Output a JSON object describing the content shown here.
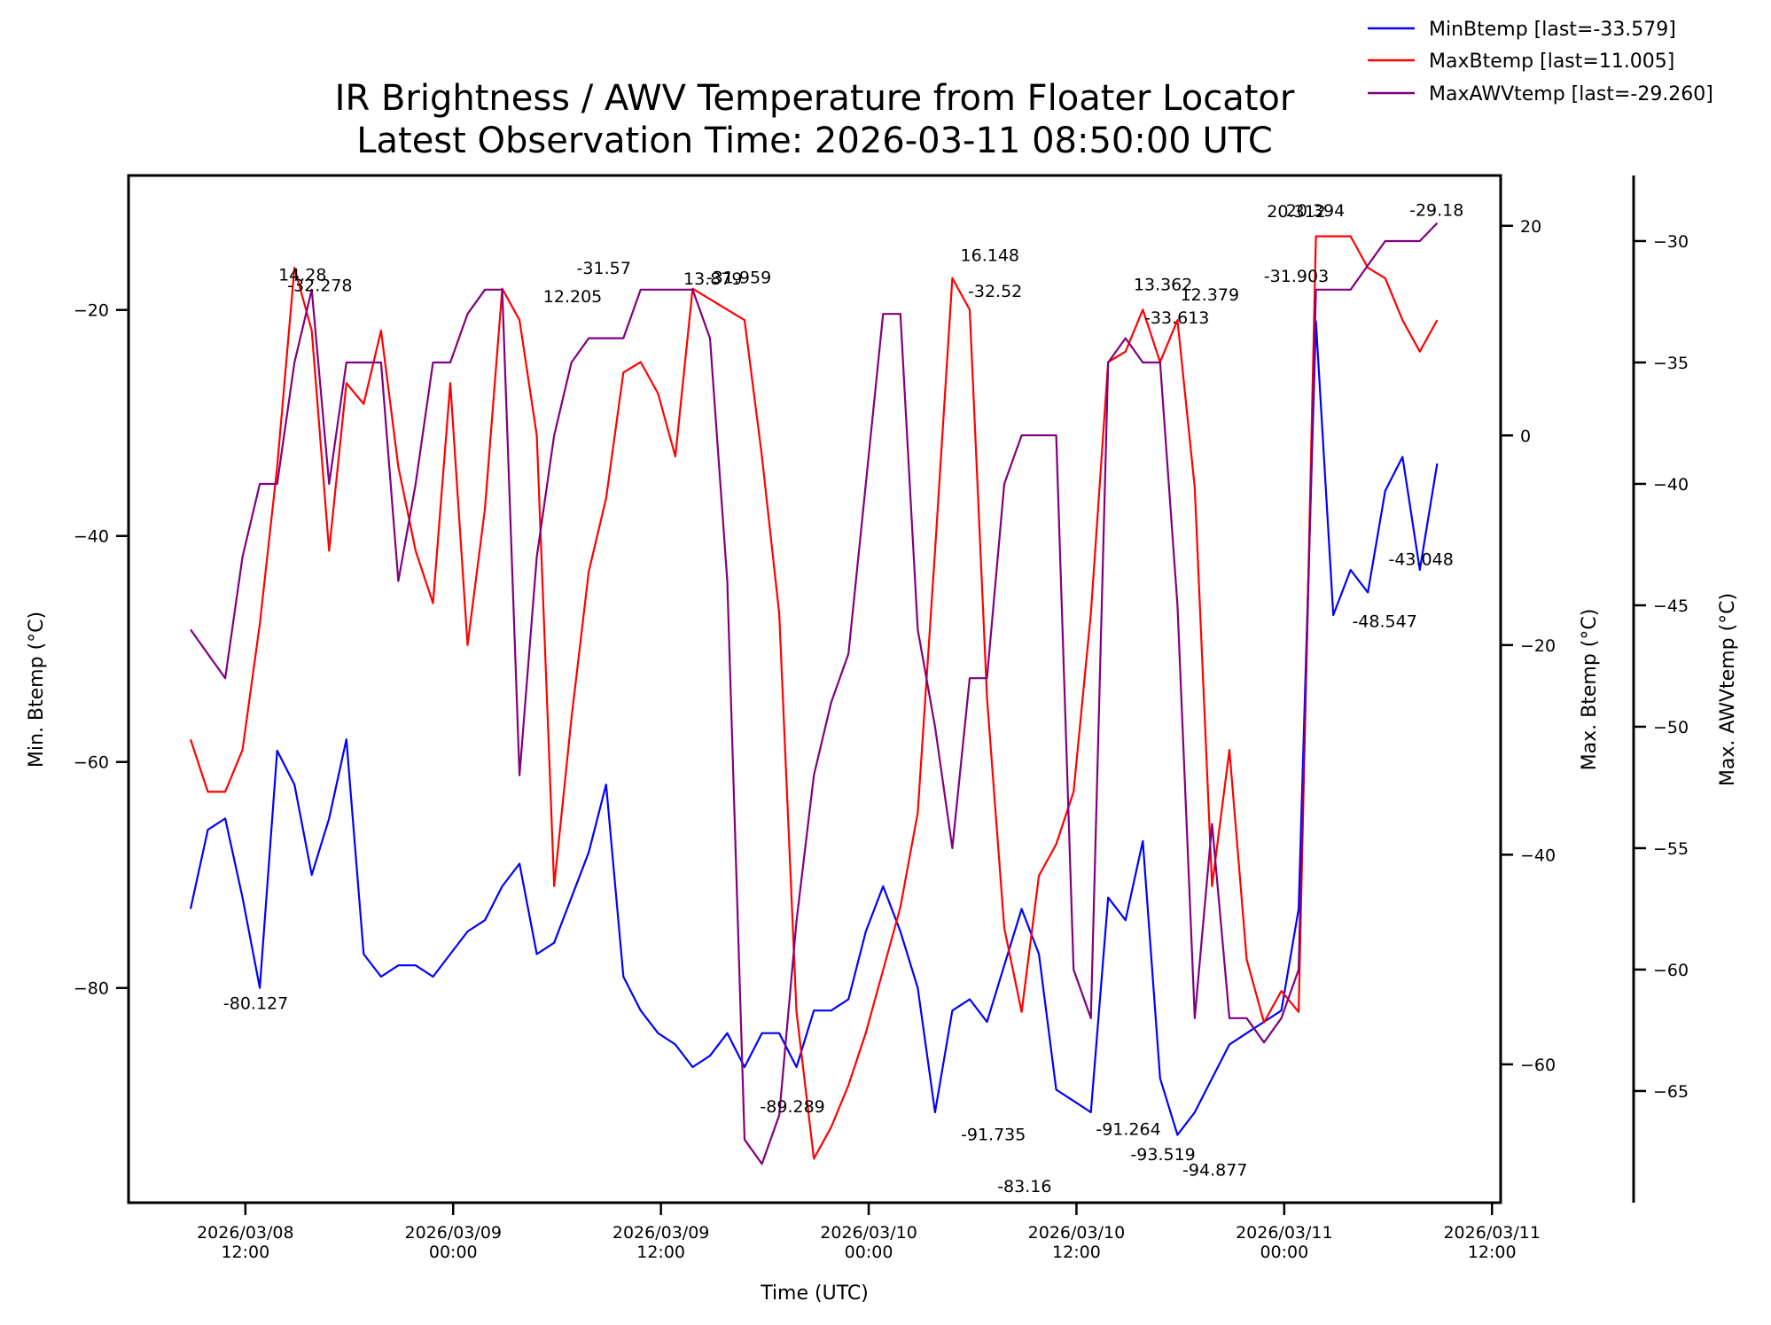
{
  "chart_data": {
    "type": "line",
    "title": [
      "IR Brightness / AWV Temperature from Floater Locator",
      "Latest Observation Time: 2026-03-11 08:50:00 UTC"
    ],
    "xlabel": "Time (UTC)",
    "x_ticks": [
      {
        "hour": 12,
        "line1": "2026/03/08",
        "line2": "12:00"
      },
      {
        "hour": 24,
        "line1": "2026/03/09",
        "line2": "00:00"
      },
      {
        "hour": 36,
        "line1": "2026/03/09",
        "line2": "12:00"
      },
      {
        "hour": 48,
        "line1": "2026/03/10",
        "line2": "00:00"
      },
      {
        "hour": 60,
        "line1": "2026/03/10",
        "line2": "12:00"
      },
      {
        "hour": 72,
        "line1": "2026/03/11",
        "line2": "00:00"
      },
      {
        "hour": 84,
        "line1": "2026/03/11",
        "line2": "12:00"
      }
    ],
    "x_unit": "hours since 2026-03-08 00:00 UTC",
    "xlim": [
      5.25,
      84.5
    ],
    "x_start": 8.833,
    "x_step_hours": 1,
    "axes": [
      {
        "id": "left",
        "label": "Min. Btemp (°C)",
        "ylim": [
          -99,
          -8.1
        ],
        "ticks": [
          -20,
          -40,
          -60,
          -80
        ]
      },
      {
        "id": "right1",
        "label": "Max. Btemp (°C)",
        "ylim": [
          -73.2,
          24.8
        ],
        "ticks": [
          20,
          0,
          -20,
          -40,
          -60
        ]
      },
      {
        "id": "right2",
        "label": "Max. AWVtemp (°C)",
        "ylim": [
          -69.6,
          -27.3
        ],
        "ticks": [
          -30,
          -35,
          -40,
          -45,
          -50,
          -55,
          -60,
          -65
        ]
      }
    ],
    "series": [
      {
        "name": "MinBtemp",
        "legend": "MinBtemp [last=-33.579]",
        "axis": "left",
        "color": "#0000ff",
        "values": [
          -73,
          -66,
          -65,
          -72,
          -80,
          -59,
          -62,
          -70,
          -65,
          -58,
          -77,
          -79,
          -78,
          -78,
          -79,
          -77,
          -75,
          -74,
          -71,
          -69,
          -77,
          -76,
          -72,
          -68,
          -62,
          -79,
          -82,
          -84,
          -85,
          -87,
          -86,
          -84,
          -87,
          -84,
          -84,
          -87,
          -82,
          -82,
          -81,
          -75,
          -71,
          -75,
          -80,
          -91,
          -82,
          -81,
          -83,
          -78,
          -73,
          -77,
          -89,
          -90,
          -91,
          -72,
          -74,
          -67,
          -88,
          -93,
          -91,
          -88,
          -85,
          -84,
          -83,
          -82,
          -73,
          -21,
          -47,
          -43,
          -45,
          -36,
          -33,
          -43,
          -33.579
        ]
      },
      {
        "name": "MaxBtemp",
        "legend": "MaxBtemp [last=11.005]",
        "axis": "right1",
        "color": "#ff0000",
        "values": [
          -29,
          -34,
          -34,
          -30,
          -18,
          -3,
          16,
          10,
          -11,
          5,
          3,
          10,
          -3,
          -11,
          -16,
          5,
          -20,
          -7,
          14,
          11,
          0,
          -43,
          -27,
          -13,
          -6,
          6,
          7,
          4,
          -2,
          14,
          13,
          12,
          11,
          -2,
          -17,
          -55,
          -69,
          -66,
          -62,
          -57,
          -51,
          -45,
          -36,
          -11,
          15,
          12,
          -25,
          -47,
          -55,
          -42,
          -39,
          -34,
          -17,
          7,
          8,
          12,
          7,
          11,
          -5,
          -43,
          -30,
          -50,
          -56,
          -53,
          -55,
          19,
          19,
          19,
          16,
          15,
          11,
          8,
          11.005
        ]
      },
      {
        "name": "MaxAWVtemp",
        "legend": "MaxAWVtemp [last=-29.260]",
        "axis": "right2",
        "color": "#800080",
        "values": [
          -46,
          -47,
          -48,
          -43,
          -40,
          -40,
          -35,
          -32,
          -40,
          -35,
          -35,
          -35,
          -44,
          -40,
          -35,
          -35,
          -33,
          -32,
          -32,
          -52,
          -43,
          -38,
          -35,
          -34,
          -34,
          -34,
          -32,
          -32,
          -32,
          -32,
          -34,
          -44,
          -67,
          -68,
          -66,
          -58,
          -52,
          -49,
          -47,
          -40,
          -33,
          -33,
          -46,
          -50,
          -55,
          -48,
          -48,
          -40,
          -38,
          -38,
          -38,
          -60,
          -62,
          -35,
          -34,
          -35,
          -35,
          -45,
          -62,
          -54,
          -62,
          -62,
          -63,
          -62,
          -60,
          -32,
          -32,
          -32,
          -31,
          -30,
          -30,
          -30,
          -29.26
        ]
      }
    ],
    "annotations": [
      {
        "text": "14.28",
        "series": "MaxBtemp",
        "hour": 15.3,
        "value": 14.28
      },
      {
        "text": "-32.278",
        "series": "MaxAWVtemp",
        "hour": 16.3,
        "value": -32.278
      },
      {
        "text": "12.205",
        "series": "MaxBtemp",
        "hour": 30.9,
        "value": 12.205
      },
      {
        "text": "-31.57",
        "series": "MaxAWVtemp",
        "hour": 32.7,
        "value": -31.57
      },
      {
        "text": "13.879",
        "series": "MaxBtemp",
        "hour": 39.0,
        "value": 13.879
      },
      {
        "text": "-31.959",
        "series": "MaxAWVtemp",
        "hour": 40.5,
        "value": -31.959
      },
      {
        "text": "16.148",
        "series": "MaxBtemp",
        "hour": 55.0,
        "value": 16.148
      },
      {
        "text": "-32.52",
        "series": "MaxAWVtemp",
        "hour": 55.3,
        "value": -32.52
      },
      {
        "text": "13.362",
        "series": "MaxBtemp",
        "hour": 65.0,
        "value": 13.362
      },
      {
        "text": "-33.613",
        "series": "MaxAWVtemp",
        "hour": 65.8,
        "value": -33.613
      },
      {
        "text": "12.379",
        "series": "MaxBtemp",
        "hour": 67.7,
        "value": 12.379
      },
      {
        "text": "20.312",
        "series": "MaxBtemp",
        "hour": 72.7,
        "value": 20.312
      },
      {
        "text": "20.394",
        "series": "MaxBtemp",
        "hour": 73.8,
        "value": 20.394
      },
      {
        "text": "-31.903",
        "series": "MaxAWVtemp",
        "hour": 72.7,
        "value": -31.903
      },
      {
        "text": "-29.18",
        "series": "MaxAWVtemp",
        "hour": 80.8,
        "value": -29.18
      },
      {
        "text": "-80.127",
        "series": "MinBtemp",
        "hour": 12.6,
        "value": -80.127
      },
      {
        "text": "-89.289",
        "series": "MinBtemp",
        "hour": 43.6,
        "value": -89.289
      },
      {
        "text": "-91.735",
        "series": "MinBtemp",
        "hour": 55.2,
        "value": -91.735
      },
      {
        "text": "-83.16",
        "series": "MaxBtemp",
        "hour": 57.0,
        "value": -83.16
      },
      {
        "text": "-91.264",
        "series": "MinBtemp",
        "hour": 63.0,
        "value": -91.264
      },
      {
        "text": "-93.519",
        "series": "MinBtemp",
        "hour": 65.0,
        "value": -93.519
      },
      {
        "text": "-94.877",
        "series": "MinBtemp",
        "hour": 68.0,
        "value": -94.877
      },
      {
        "text": "-48.547",
        "series": "MinBtemp",
        "hour": 77.8,
        "value": -48.547
      },
      {
        "text": "-43.048",
        "series": "MinBtemp",
        "hour": 79.9,
        "value": -43.048
      }
    ],
    "legend": {
      "placement": "top-right",
      "entries": [
        "MinBtemp [last=-33.579]",
        "MaxBtemp [last=11.005]",
        "MaxAWVtemp [last=-29.260]"
      ]
    },
    "grid": false
  }
}
